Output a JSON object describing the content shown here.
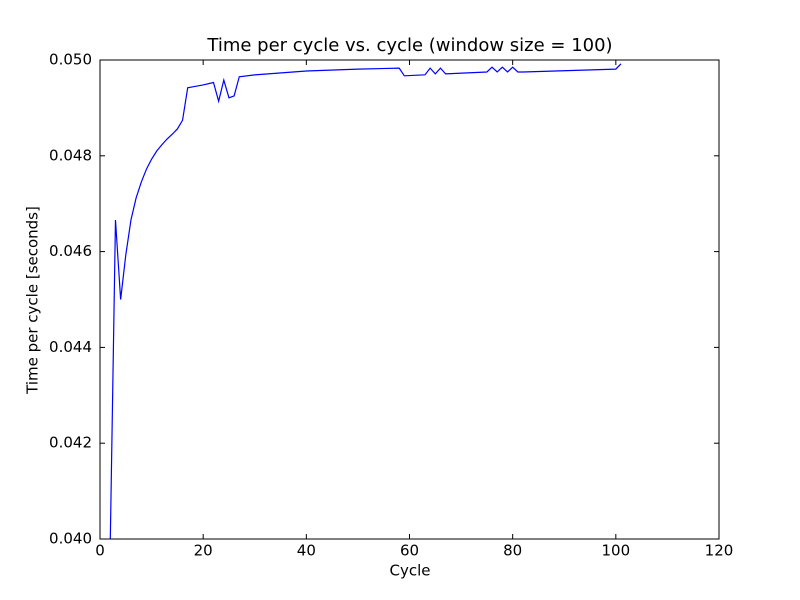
{
  "chart_data": {
    "type": "line",
    "title": "Time per cycle vs. cycle (window size = 100)",
    "x_label": "Cycle",
    "y_label": "Time per cycle [seconds]",
    "x": [
      2,
      3,
      4,
      5,
      6,
      7,
      8,
      9,
      10,
      11,
      12,
      13,
      14,
      15,
      16,
      17,
      18,
      20,
      22,
      23,
      24,
      25,
      26,
      27,
      30,
      40,
      50,
      58,
      59,
      63,
      64,
      65,
      66,
      67,
      75,
      76,
      77,
      78,
      79,
      80,
      81,
      82,
      100,
      101
    ],
    "series": [
      {
        "name": "Time per cycle",
        "color": "#0000ff",
        "values": [
          0.04,
          0.04666,
          0.045,
          0.04593,
          0.04666,
          0.04712,
          0.04745,
          0.04772,
          0.04793,
          0.0481,
          0.04823,
          0.04835,
          0.04845,
          0.04856,
          0.04874,
          0.04942,
          0.04944,
          0.04948,
          0.04953,
          0.04914,
          0.04958,
          0.04921,
          0.04925,
          0.04965,
          0.04969,
          0.04977,
          0.04981,
          0.04983,
          0.04967,
          0.04969,
          0.04983,
          0.04971,
          0.04983,
          0.04971,
          0.04975,
          0.04985,
          0.04975,
          0.04985,
          0.04975,
          0.04985,
          0.04975,
          0.04975,
          0.04981,
          0.04992
        ]
      }
    ],
    "xlim": [
      0,
      120
    ],
    "ylim": [
      0.04,
      0.05
    ],
    "xticks": [
      0,
      20,
      40,
      60,
      80,
      100,
      120
    ],
    "yticks": [
      {
        "value": 0.04,
        "label": "0.040"
      },
      {
        "value": 0.042,
        "label": "0.042"
      },
      {
        "value": 0.044,
        "label": "0.044"
      },
      {
        "value": 0.046,
        "label": "0.046"
      },
      {
        "value": 0.048,
        "label": "0.048"
      },
      {
        "value": 0.05,
        "label": "0.050"
      }
    ],
    "grid": false
  }
}
